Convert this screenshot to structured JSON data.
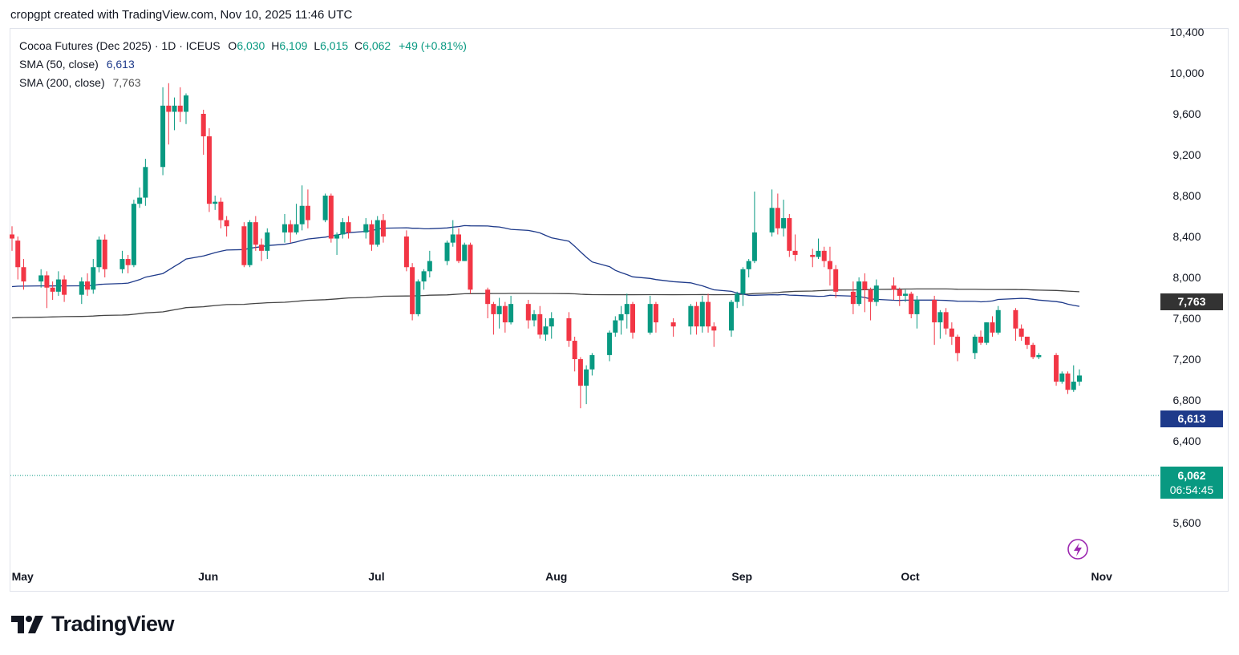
{
  "caption": "cropgpt created with TradingView.com, Nov 10, 2025 11:46 UTC",
  "legend": {
    "symbol": "Cocoa Futures (Dec 2025) · 1D · ICEUS",
    "o_label": "O",
    "o": "6,030",
    "h_label": "H",
    "h": "6,109",
    "l_label": "L",
    "l": "6,015",
    "c_label": "C",
    "c": "6,062",
    "change": "+49 (+0.81%)",
    "sma50_label": "SMA (50, close)",
    "sma50_value": "6,613",
    "sma200_label": "SMA (200, close)",
    "sma200_value": "7,763"
  },
  "tags": {
    "sma200": "7,763",
    "sma50": "6,613",
    "last_price": "6,062",
    "countdown": "06:54:45"
  },
  "brand": "TradingView",
  "colors": {
    "up": "#089981",
    "down": "#f23645",
    "sma50": "#1e3a8a",
    "sma200": "#444444",
    "sma200_tag": "#333333",
    "sma50_tag": "#1e3a8a",
    "price_tag": "#089981",
    "flash": "#9c27b0"
  },
  "chart_data": {
    "type": "candlestick",
    "y_ticks": [
      10400,
      10000,
      9600,
      9200,
      8800,
      8400,
      8000,
      7600,
      7200,
      6800,
      6400,
      6000,
      5600
    ],
    "y_tick_labels": [
      "10,400",
      "10,000",
      "9,600",
      "9,200",
      "8,800",
      "8,400",
      "8,000",
      "7,600",
      "7,200",
      "6,800",
      "6,400",
      "",
      "5,600"
    ],
    "ylim": [
      5300,
      10450
    ],
    "x_labels": [
      "May",
      "Jun",
      "Jul",
      "Aug",
      "Sep",
      "Oct",
      "Nov"
    ],
    "x_label_dates": [
      "2025-05-01",
      "2025-06-02",
      "2025-07-01",
      "2025-08-01",
      "2025-09-02",
      "2025-10-01",
      "2025-11-03"
    ],
    "last_price": 6062,
    "candles": [
      [
        "2025-04-30",
        8420,
        8380,
        8500,
        8260
      ],
      [
        "2025-05-01",
        8360,
        8100,
        8400,
        7980
      ],
      [
        "2025-05-02",
        8100,
        7960,
        8180,
        7880
      ],
      [
        "2025-05-05",
        7960,
        8020,
        8080,
        7900
      ],
      [
        "2025-05-06",
        8020,
        7900,
        8060,
        7700
      ],
      [
        "2025-05-07",
        7900,
        7860,
        7960,
        7780
      ],
      [
        "2025-05-08",
        7860,
        7980,
        8060,
        7820
      ],
      [
        "2025-05-09",
        7980,
        7830,
        8020,
        7760
      ],
      [
        "2025-05-12",
        7830,
        7960,
        8000,
        7740
      ],
      [
        "2025-05-13",
        7960,
        7880,
        8040,
        7820
      ],
      [
        "2025-05-14",
        7880,
        8100,
        8180,
        7840
      ],
      [
        "2025-05-15",
        8100,
        8370,
        8400,
        8050
      ],
      [
        "2025-05-16",
        8370,
        8080,
        8420,
        8000
      ],
      [
        "2025-05-19",
        8080,
        8180,
        8260,
        8040
      ],
      [
        "2025-05-20",
        8180,
        8120,
        8220,
        8040
      ],
      [
        "2025-05-21",
        8120,
        8720,
        8760,
        8100
      ],
      [
        "2025-05-22",
        8720,
        8780,
        8880,
        8680
      ],
      [
        "2025-05-23",
        8780,
        9080,
        9160,
        8700
      ],
      [
        "2025-05-26",
        9080,
        9680,
        9860,
        9000
      ],
      [
        "2025-05-27",
        9680,
        9620,
        9900,
        9300
      ],
      [
        "2025-05-28",
        9620,
        9680,
        9760,
        9440
      ],
      [
        "2025-05-29",
        9680,
        9620,
        9860,
        9520
      ],
      [
        "2025-05-30",
        9620,
        9780,
        9800,
        9500
      ],
      [
        "2025-06-02",
        9600,
        9380,
        9640,
        9200
      ],
      [
        "2025-06-03",
        9380,
        8720,
        9460,
        8640
      ],
      [
        "2025-06-04",
        8720,
        8740,
        8800,
        8660
      ],
      [
        "2025-06-05",
        8740,
        8560,
        8780,
        8480
      ],
      [
        "2025-06-06",
        8560,
        8500,
        8600,
        8400
      ],
      [
        "2025-06-09",
        8500,
        8120,
        8540,
        8100
      ],
      [
        "2025-06-10",
        8120,
        8540,
        8560,
        8100
      ],
      [
        "2025-06-11",
        8540,
        8320,
        8600,
        8260
      ],
      [
        "2025-06-12",
        8320,
        8260,
        8380,
        8160
      ],
      [
        "2025-06-13",
        8260,
        8440,
        8480,
        8180
      ],
      [
        "2025-06-16",
        8440,
        8520,
        8620,
        8340
      ],
      [
        "2025-06-17",
        8520,
        8440,
        8560,
        8340
      ],
      [
        "2025-06-18",
        8440,
        8520,
        8720,
        8420
      ],
      [
        "2025-06-19",
        8520,
        8700,
        8900,
        8460
      ],
      [
        "2025-06-20",
        8700,
        8560,
        8860,
        8480
      ],
      [
        "2025-06-23",
        8560,
        8800,
        8820,
        8540
      ],
      [
        "2025-06-24",
        8800,
        8380,
        8820,
        8340
      ],
      [
        "2025-06-25",
        8380,
        8420,
        8440,
        8220
      ],
      [
        "2025-06-26",
        8420,
        8540,
        8580,
        8380
      ],
      [
        "2025-06-27",
        8540,
        8440,
        8600,
        8380
      ],
      [
        "2025-06-30",
        8440,
        8520,
        8580,
        8380
      ],
      [
        "2025-07-01",
        8520,
        8320,
        8560,
        8260
      ],
      [
        "2025-07-02",
        8320,
        8560,
        8600,
        8300
      ],
      [
        "2025-07-03",
        8560,
        8400,
        8620,
        8340
      ],
      [
        "2025-07-07",
        8400,
        8100,
        8460,
        8060
      ],
      [
        "2025-07-08",
        8100,
        7640,
        8140,
        7580
      ],
      [
        "2025-07-09",
        7640,
        7960,
        7980,
        7620
      ],
      [
        "2025-07-10",
        7960,
        8060,
        8080,
        7880
      ],
      [
        "2025-07-11",
        8060,
        8160,
        8260,
        8000
      ],
      [
        "2025-07-14",
        8160,
        8340,
        8360,
        8120
      ],
      [
        "2025-07-15",
        8340,
        8420,
        8560,
        8300
      ],
      [
        "2025-07-16",
        8420,
        8160,
        8480,
        8140
      ],
      [
        "2025-07-17",
        8160,
        8320,
        8340,
        8160
      ],
      [
        "2025-07-18",
        8320,
        7880,
        8340,
        7840
      ],
      [
        "2025-07-21",
        7880,
        7740,
        7900,
        7600
      ],
      [
        "2025-07-22",
        7740,
        7640,
        7760,
        7440
      ],
      [
        "2025-07-23",
        7640,
        7720,
        7800,
        7500
      ],
      [
        "2025-07-24",
        7720,
        7560,
        7760,
        7460
      ],
      [
        "2025-07-25",
        7560,
        7740,
        7820,
        7540
      ],
      [
        "2025-07-28",
        7740,
        7580,
        7780,
        7500
      ],
      [
        "2025-07-29",
        7580,
        7640,
        7680,
        7520
      ],
      [
        "2025-07-30",
        7640,
        7440,
        7720,
        7400
      ],
      [
        "2025-07-31",
        7440,
        7520,
        7600,
        7380
      ],
      [
        "2025-08-01",
        7520,
        7600,
        7660,
        7400
      ],
      [
        "2025-08-04",
        7600,
        7380,
        7660,
        7320
      ],
      [
        "2025-08-05",
        7380,
        7200,
        7420,
        7080
      ],
      [
        "2025-08-06",
        7200,
        6940,
        7220,
        6720
      ],
      [
        "2025-08-07",
        6940,
        7100,
        7140,
        6760
      ],
      [
        "2025-08-08",
        7100,
        7240,
        7260,
        7040
      ],
      [
        "2025-08-11",
        7240,
        7460,
        7480,
        7180
      ],
      [
        "2025-08-12",
        7460,
        7580,
        7620,
        7420
      ],
      [
        "2025-08-13",
        7580,
        7640,
        7720,
        7440
      ],
      [
        "2025-08-14",
        7640,
        7740,
        7840,
        7500
      ],
      [
        "2025-08-15",
        7740,
        7460,
        7760,
        7400
      ],
      [
        "2025-08-18",
        7460,
        7740,
        7820,
        7440
      ],
      [
        "2025-08-19",
        7740,
        7560,
        7760,
        7460
      ],
      [
        "2025-08-22",
        7560,
        7520,
        7600,
        7420
      ],
      [
        "2025-08-25",
        7520,
        7720,
        7740,
        7440
      ],
      [
        "2025-08-26",
        7720,
        7520,
        7760,
        7440
      ],
      [
        "2025-08-27",
        7520,
        7760,
        7820,
        7460
      ],
      [
        "2025-08-28",
        7760,
        7520,
        7840,
        7460
      ],
      [
        "2025-08-29",
        7520,
        7480,
        7560,
        7320
      ],
      [
        "2025-09-01",
        7480,
        7760,
        7780,
        7420
      ],
      [
        "2025-09-02",
        7760,
        7840,
        7860,
        7700
      ],
      [
        "2025-09-03",
        7840,
        8080,
        8100,
        7720
      ],
      [
        "2025-09-04",
        8080,
        8160,
        8180,
        8000
      ],
      [
        "2025-09-05",
        8160,
        8440,
        8840,
        8140
      ],
      [
        "2025-09-08",
        8440,
        8680,
        8860,
        8400
      ],
      [
        "2025-09-09",
        8680,
        8480,
        8820,
        8420
      ],
      [
        "2025-09-10",
        8480,
        8580,
        8760,
        8400
      ],
      [
        "2025-09-11",
        8580,
        8260,
        8620,
        8200
      ],
      [
        "2025-09-12",
        8260,
        8220,
        8420,
        8160
      ],
      [
        "2025-09-15",
        8220,
        8200,
        8280,
        8100
      ],
      [
        "2025-09-16",
        8200,
        8260,
        8380,
        8180
      ],
      [
        "2025-09-17",
        8260,
        8160,
        8300,
        8100
      ],
      [
        "2025-09-18",
        8160,
        8080,
        8300,
        7920
      ],
      [
        "2025-09-19",
        8080,
        7860,
        8120,
        7800
      ],
      [
        "2025-09-22",
        7860,
        7740,
        7960,
        7640
      ],
      [
        "2025-09-23",
        7740,
        7960,
        8000,
        7720
      ],
      [
        "2025-09-24",
        7960,
        7880,
        8040,
        7660
      ],
      [
        "2025-09-25",
        7880,
        7760,
        7900,
        7580
      ],
      [
        "2025-09-26",
        7760,
        7920,
        7980,
        7720
      ],
      [
        "2025-09-29",
        7920,
        7880,
        8000,
        7780
      ],
      [
        "2025-09-30",
        7880,
        7820,
        7900,
        7720
      ],
      [
        "2025-10-01",
        7820,
        7840,
        7880,
        7760
      ],
      [
        "2025-10-02",
        7840,
        7640,
        7860,
        7600
      ],
      [
        "2025-10-03",
        7640,
        7780,
        7820,
        7500
      ],
      [
        "2025-10-06",
        7780,
        7560,
        7820,
        7340
      ],
      [
        "2025-10-07",
        7560,
        7660,
        7680,
        7400
      ],
      [
        "2025-10-08",
        7660,
        7500,
        7700,
        7440
      ],
      [
        "2025-10-09",
        7500,
        7420,
        7560,
        7340
      ],
      [
        "2025-10-10",
        7420,
        7260,
        7440,
        7180
      ],
      [
        "2025-10-13",
        7260,
        7420,
        7440,
        7200
      ],
      [
        "2025-10-14",
        7420,
        7360,
        7480,
        7340
      ],
      [
        "2025-10-15",
        7360,
        7560,
        7560,
        7340
      ],
      [
        "2025-10-16",
        7560,
        7460,
        7620,
        7420
      ],
      [
        "2025-10-17",
        7460,
        7680,
        7720,
        7440
      ],
      [
        "2025-10-20",
        7680,
        7500,
        7700,
        7380
      ],
      [
        "2025-10-21",
        7500,
        7420,
        7540,
        7380
      ],
      [
        "2025-10-22",
        7420,
        7340,
        7400,
        7300
      ],
      [
        "2025-10-23",
        7340,
        7220,
        7360,
        7200
      ],
      [
        "2025-10-24",
        7220,
        7240,
        7260,
        7200
      ],
      [
        "2025-10-27",
        7240,
        6980,
        7260,
        6940
      ],
      [
        "2025-10-28",
        6980,
        7060,
        7080,
        6960
      ],
      [
        "2025-10-29",
        7060,
        6900,
        7080,
        6860
      ],
      [
        "2025-10-30",
        6900,
        6980,
        7140,
        6880
      ],
      [
        "2025-10-31",
        6980,
        7040,
        7100,
        6940
      ]
    ]
  }
}
